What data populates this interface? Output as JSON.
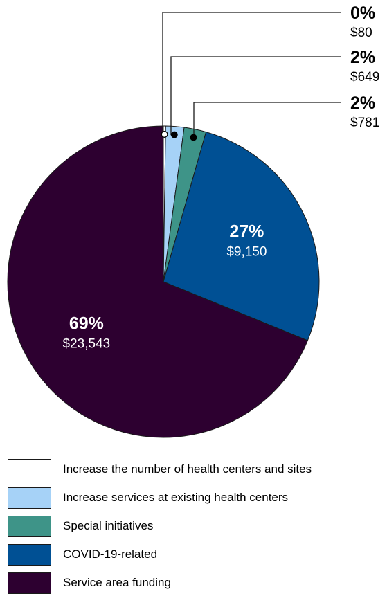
{
  "chart_data": {
    "type": "pie",
    "categories": [
      "Increase the number of health centers and sites",
      "Increase services at existing health centers",
      "Special initiatives",
      "COVID-19-related",
      "Service area funding"
    ],
    "values": [
      80,
      649,
      781,
      9150,
      23543
    ],
    "percent_labels": [
      "0%",
      "2%",
      "2%",
      "27%",
      "69%"
    ],
    "value_labels": [
      "$80",
      "$649",
      "$781",
      "$9,150",
      "$23,543"
    ],
    "colors": [
      "#ffffff",
      "#a6d2f7",
      "#3e9488",
      "#005094",
      "#2d0030"
    ],
    "label_text_colors": [
      "#000000",
      "#000000",
      "#000000",
      "#ffffff",
      "#ffffff"
    ],
    "legend_position": "bottom"
  }
}
